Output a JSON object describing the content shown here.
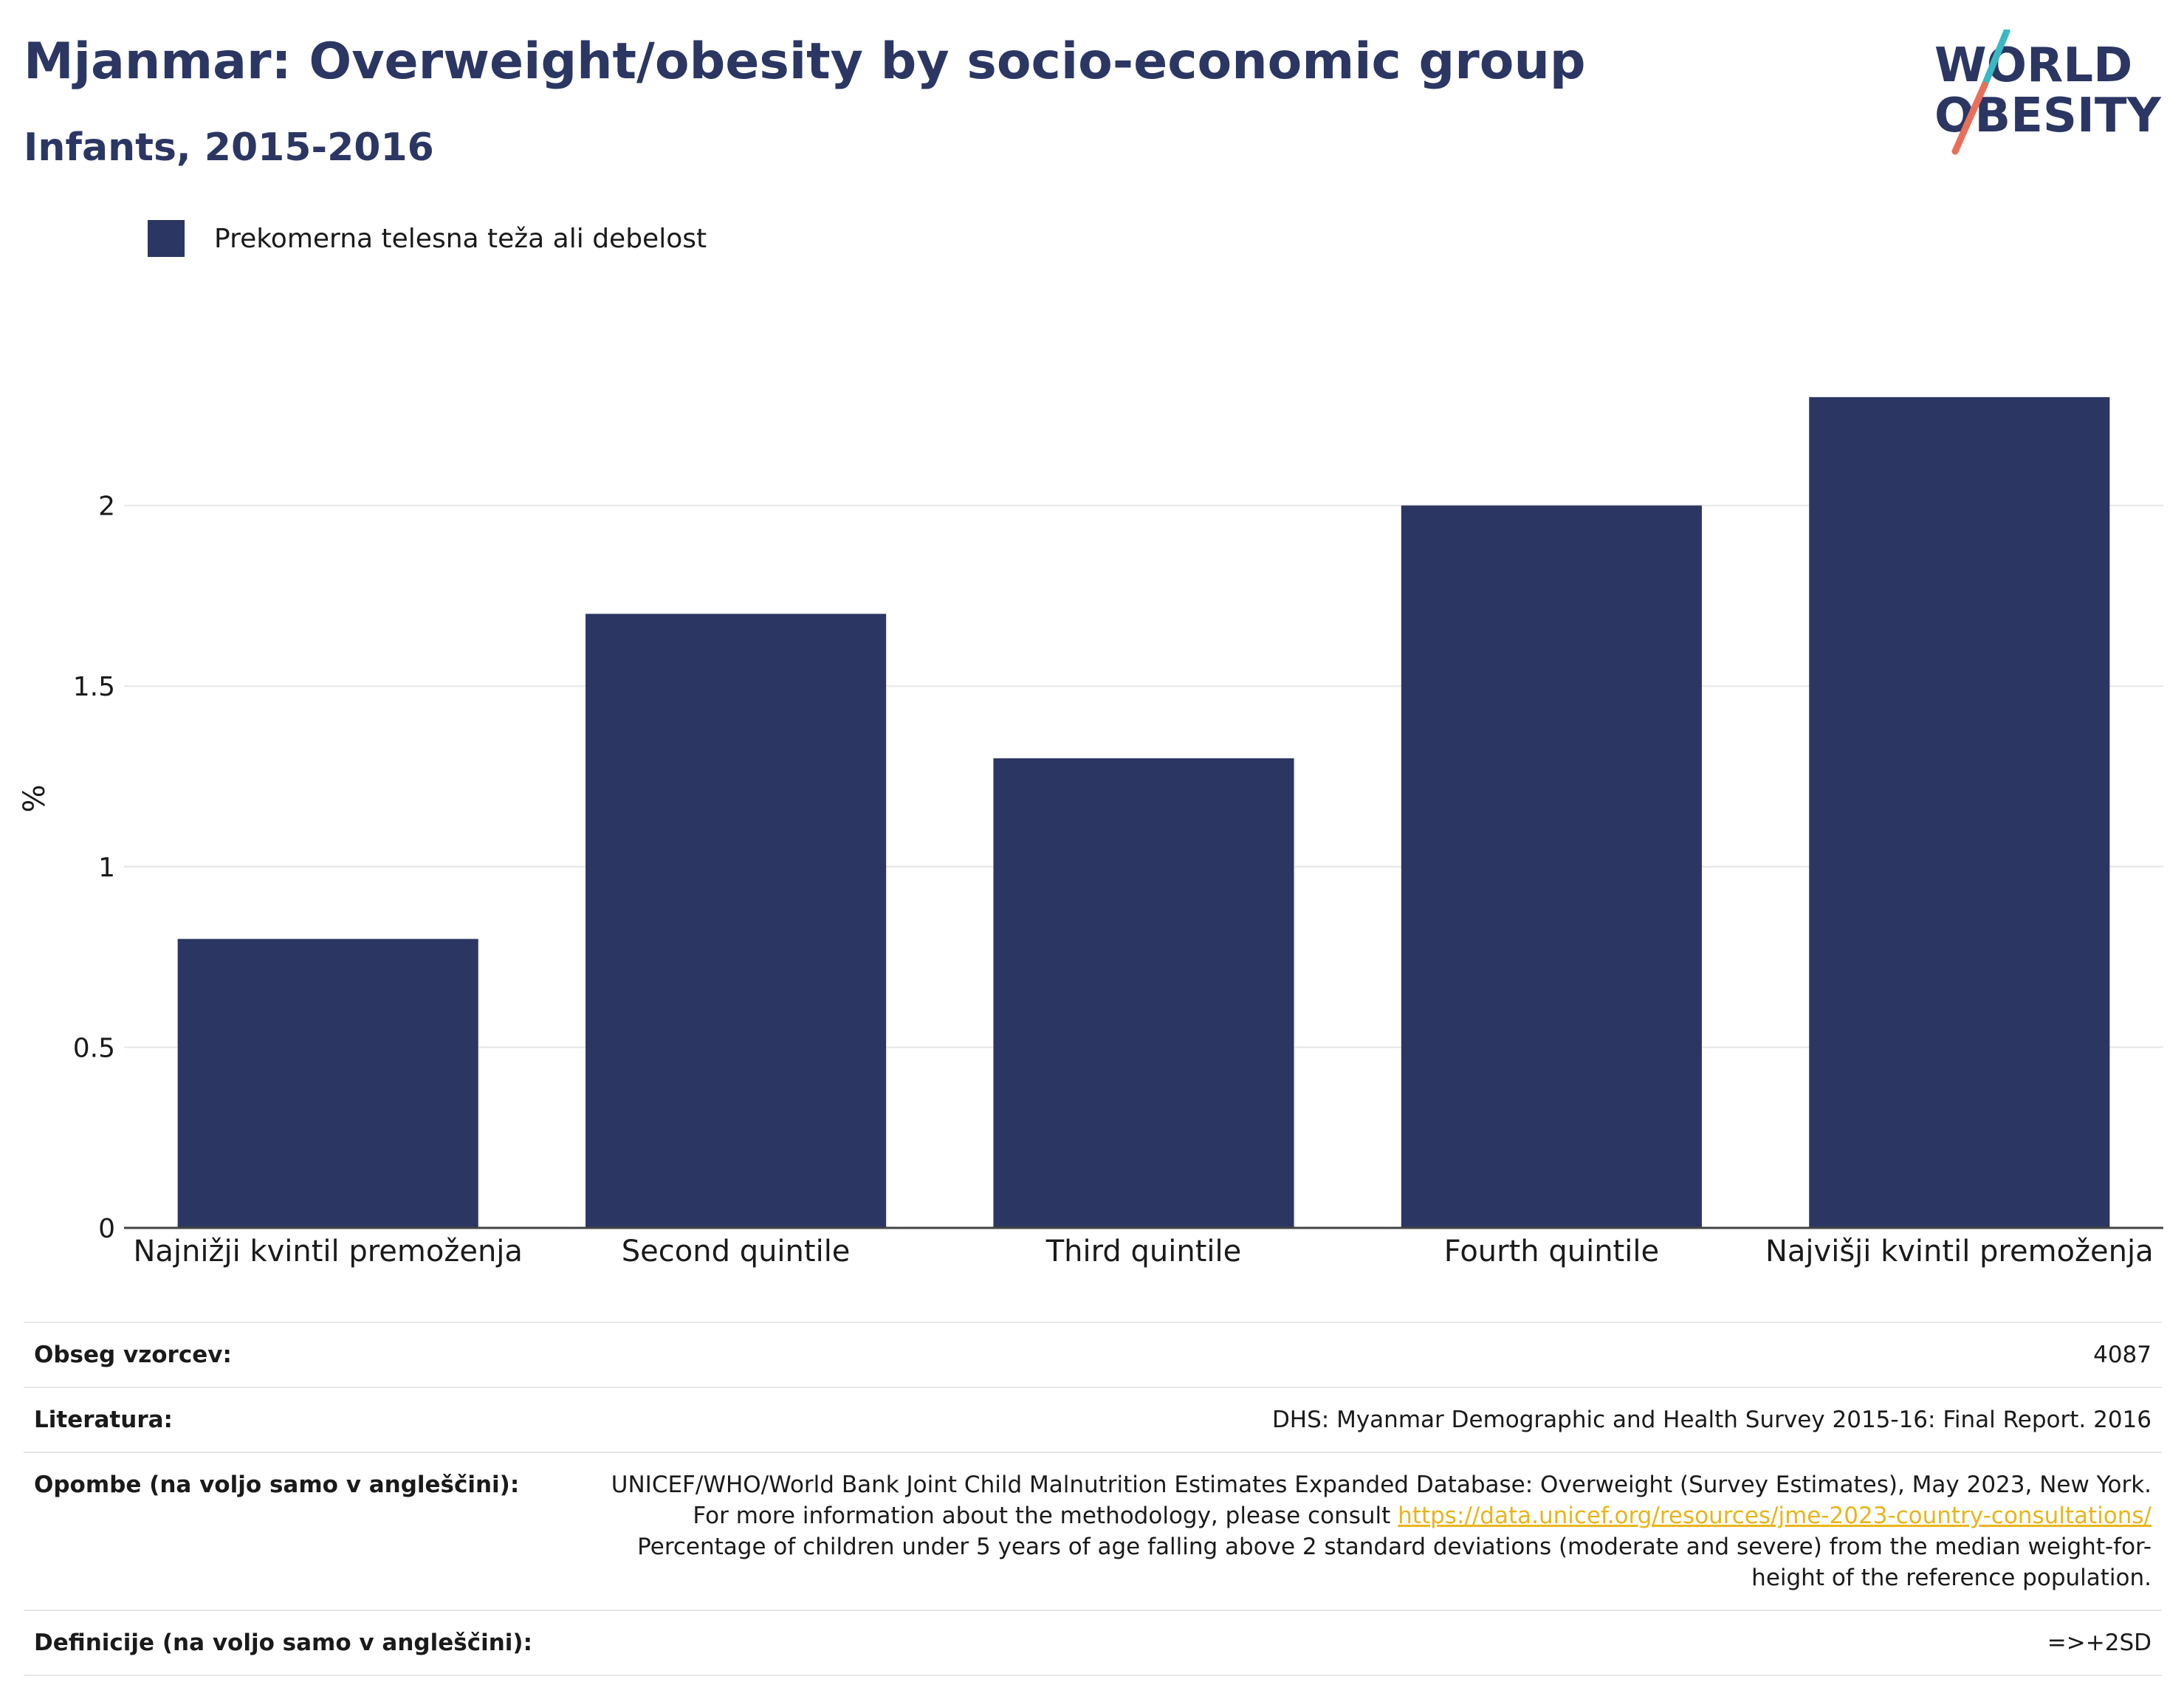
{
  "header": {
    "title": "Mjanmar: Overweight/obesity by socio-economic group",
    "subtitle": "Infants, 2015-2016"
  },
  "logo": {
    "line1": "WORLD",
    "line2": "OBESITY",
    "colors": {
      "text": "#2b3663",
      "slash_top": "#3bb8c4",
      "slash_bottom": "#e8705a"
    }
  },
  "legend": {
    "label": "Prekomerna telesna teža ali debelost",
    "color": "#2b3663"
  },
  "chart_data": {
    "type": "bar",
    "categories": [
      "Najnižji kvintil premoženja",
      "Second quintile",
      "Third quintile",
      "Fourth quintile",
      "Najvišji kvintil premoženja"
    ],
    "series": [
      {
        "name": "Prekomerna telesna teža ali debelost",
        "values": [
          0.8,
          1.7,
          1.3,
          2.0,
          2.3
        ],
        "color": "#2b3663"
      }
    ],
    "ylabel": "%",
    "ylim": [
      0,
      2.5
    ],
    "yticks": [
      0,
      0.5,
      1,
      1.5,
      2
    ],
    "ytick_labels": [
      "0",
      "0.5",
      "1",
      "1.5",
      "2"
    ],
    "grid": true,
    "legend_position": "top-left"
  },
  "meta": {
    "sample_label": "Obseg vzorcev:",
    "sample_value": "4087",
    "source_label": "Literatura:",
    "source_value": "DHS: Myanmar Demographic and Health Survey 2015-16: Final Report. 2016",
    "notes_label": "Opombe (na voljo samo v angleščini):",
    "notes_before_link": "UNICEF/WHO/World Bank Joint Child Malnutrition Estimates Expanded Database: Overweight (Survey Estimates), May 2023, New York. For more information about the methodology, please consult ",
    "notes_link": "https://data.unicef.org/resources/jme-2023-country-consultations/",
    "notes_after_link": " Percentage of children under 5 years of age falling above 2 standard deviations (moderate and severe) from the median weight-for-height of the reference population.",
    "definitions_label": "Definicije (na voljo samo v angleščini):",
    "definitions_value": "=>+2SD"
  }
}
